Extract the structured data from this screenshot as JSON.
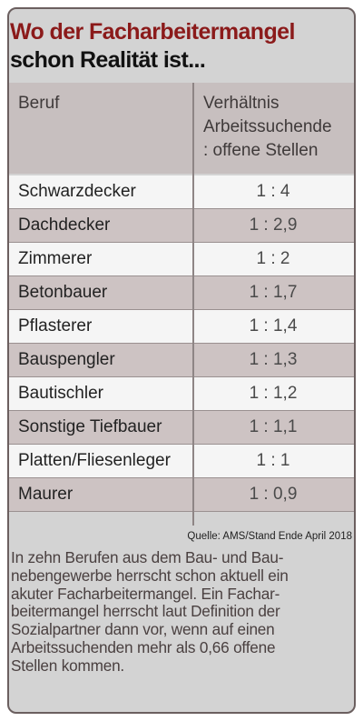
{
  "title": {
    "line1": "Wo der Facharbeitermangel",
    "line2": "schon Realität ist..."
  },
  "table": {
    "header": {
      "col1": "Beruf",
      "col2_lines": [
        "Verhältnis",
        "Arbeitssuchende",
        ": offene Stellen"
      ]
    },
    "rows": [
      {
        "beruf": "Schwarzdecker",
        "ratio": "1 : 4"
      },
      {
        "beruf": "Dachdecker",
        "ratio": "1 : 2,9"
      },
      {
        "beruf": "Zimmerer",
        "ratio": "1 : 2"
      },
      {
        "beruf": "Betonbauer",
        "ratio": "1 : 1,7"
      },
      {
        "beruf": "Pflasterer",
        "ratio": "1 : 1,4"
      },
      {
        "beruf": "Bauspengler",
        "ratio": "1 : 1,3"
      },
      {
        "beruf": "Bautischler",
        "ratio": "1 : 1,2"
      },
      {
        "beruf": "Sonstige Tiefbauer",
        "ratio": "1 : 1,1"
      },
      {
        "beruf": "Platten/Fliesenleger",
        "ratio": "1 : 1"
      },
      {
        "beruf": "Maurer",
        "ratio": "1 : 0,9"
      }
    ]
  },
  "source": "Quelle: AMS/Stand Ende April 2018",
  "description_lines": [
    "In zehn Berufen aus dem Bau- und Bau-",
    "nebengewerbe herrscht schon aktuell ein",
    "akuter Facharbeitermangel. Ein Fachar-",
    "beitermangel herrscht laut Definition der",
    "Sozialpartner dann vor, wenn auf einen",
    "Arbeitssuchenden mehr als 0,66 offene",
    "Stellen kommen."
  ],
  "colors": {
    "title_accent": "#8b1a1a",
    "background": "#d3d3d3",
    "row_light": "#f5f5f5",
    "row_dark": "#cdc3c3"
  }
}
